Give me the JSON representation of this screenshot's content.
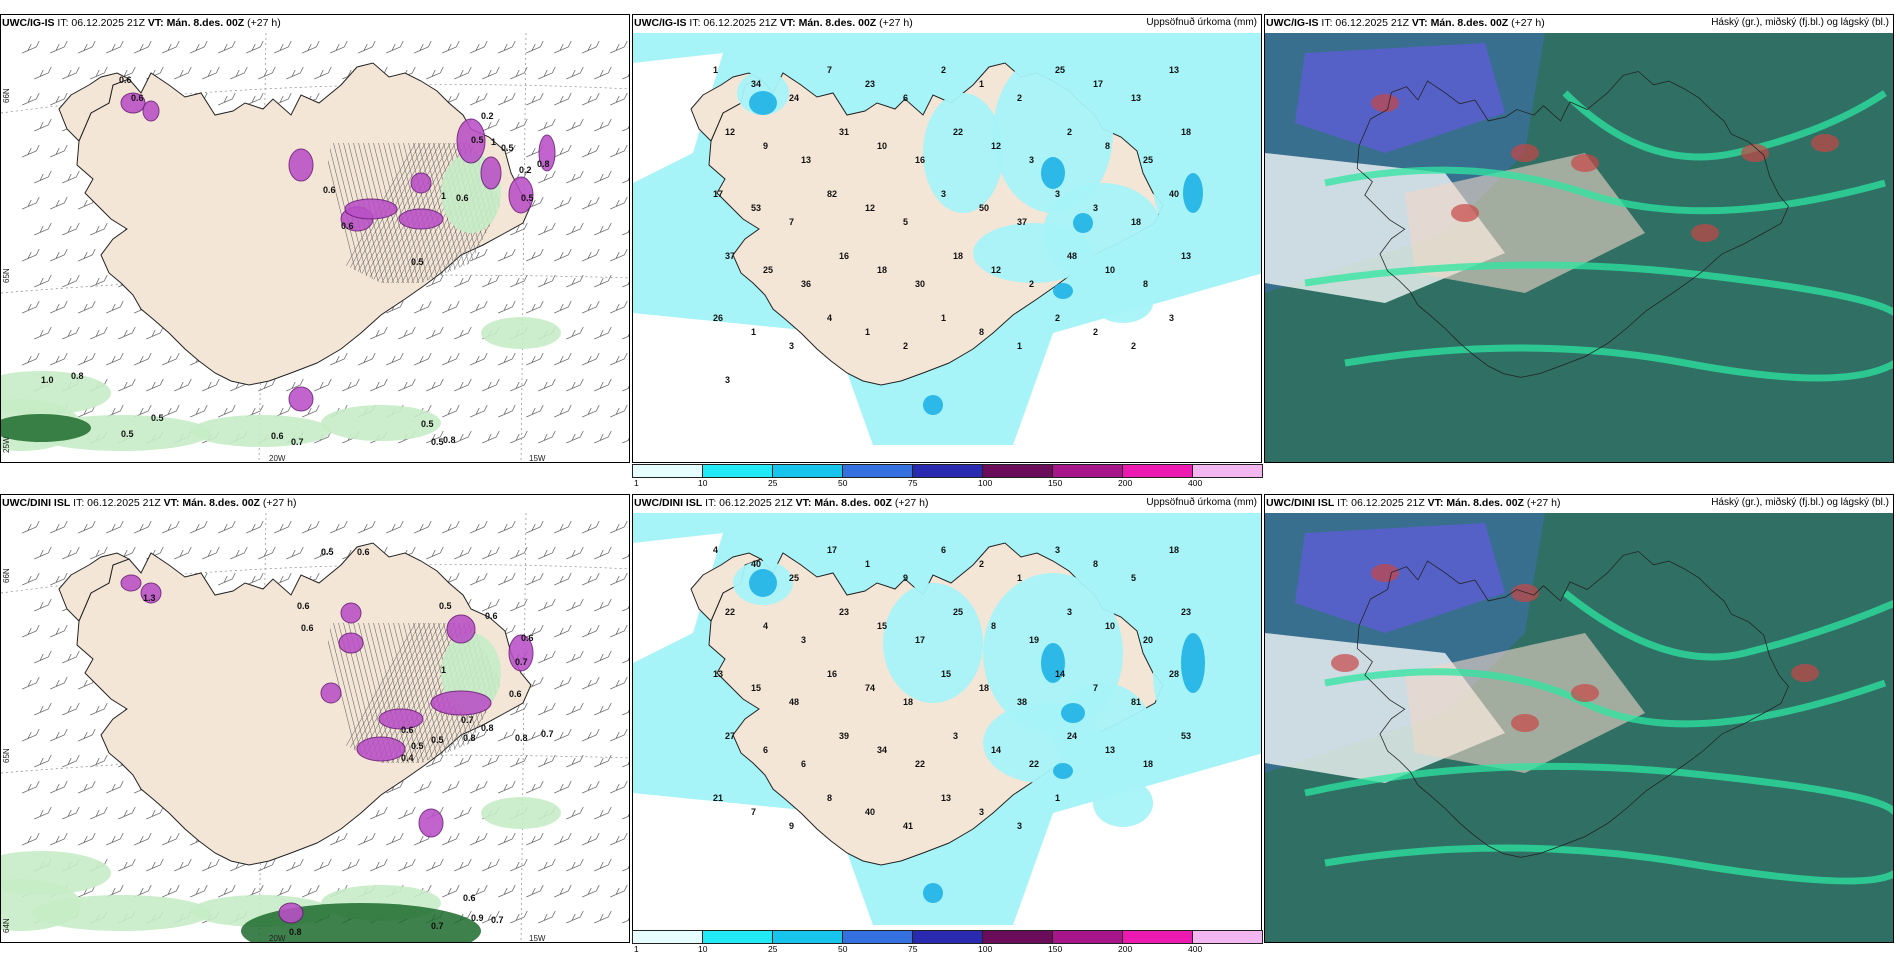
{
  "colors": {
    "land": "#f4e6d7",
    "sea": "#ffffff",
    "precip_light": "#a6f3f8",
    "precip_mid": "#54d9ee",
    "precip_strong": "#1fb3e6",
    "purple": "#b94fc7",
    "green_light": "#c7ecc7",
    "green_dark": "#1d6b2e",
    "cloud_teal": "#2f6f64",
    "cloud_bright": "#2ee6a0",
    "cloud_blue": "#5a5fd0"
  },
  "rows": [
    {
      "model_name": "UWC/IG-IS",
      "panels": [
        {
          "title_model": "UWC/IG-IS",
          "title_it": "IT: 06.12.2025 21Z",
          "title_vt": "VT: Mán. 8.des. 00Z",
          "title_lead": "(+27 h)",
          "right_title": ""
        },
        {
          "title_model": "UWC/IG-IS",
          "title_it": "IT: 06.12.2025 21Z",
          "title_vt": "VT: Mán. 8.des. 00Z",
          "title_lead": "(+27 h)",
          "right_title": "Uppsöfnuð úrkoma (mm)"
        },
        {
          "title_model": "UWC/IG-IS",
          "title_it": "IT: 06.12.2025 21Z",
          "title_vt": "VT: Mán. 8.des. 00Z",
          "title_lead": "(+27 h)",
          "right_title": "Háský (gr.), miðský (fj.bl.) og lágský (bl.)"
        }
      ],
      "precip_labels": [
        "1",
        "34",
        "24",
        "7",
        "23",
        "6",
        "2",
        "1",
        "2",
        "25",
        "17",
        "13",
        "13",
        "12",
        "9",
        "13",
        "31",
        "10",
        "16",
        "22",
        "12",
        "3",
        "2",
        "8",
        "25",
        "18",
        "17",
        "53",
        "7",
        "82",
        "12",
        "5",
        "3",
        "50",
        "37",
        "3",
        "3",
        "18",
        "40",
        "37",
        "25",
        "36",
        "16",
        "18",
        "30",
        "18",
        "12",
        "2",
        "48",
        "10",
        "8",
        "13",
        "26",
        "1",
        "3",
        "4",
        "1",
        "2",
        "1",
        "8",
        "1",
        "2",
        "2",
        "2",
        "3",
        "3"
      ],
      "lowcloud_labels": [
        "0.6",
        "0.6",
        "0.2",
        "1",
        "0.2",
        "0.6",
        "0.6",
        "0.6",
        "0.5",
        "1",
        "0.8",
        "1.0",
        "0.8",
        "0.5",
        "0.5",
        "0.6",
        "0.7",
        "0.5",
        "0.8",
        "0.5",
        "0.5",
        "0.5",
        "0.5"
      ]
    },
    {
      "model_name": "UWC/DINI ISL",
      "panels": [
        {
          "title_model": "UWC/DINI ISL",
          "title_it": "IT: 06.12.2025 21Z",
          "title_vt": "VT: Mán. 8.des. 00Z",
          "title_lead": "(+27 h)",
          "right_title": ""
        },
        {
          "title_model": "UWC/DINI ISL",
          "title_it": "IT: 06.12.2025 21Z",
          "title_vt": "VT: Mán. 8.des. 00Z",
          "title_lead": "(+27 h)",
          "right_title": "Uppsöfnuð úrkoma (mm)"
        },
        {
          "title_model": "UWC/DINI ISL",
          "title_it": "IT: 06.12.2025 21Z",
          "title_vt": "VT: Mán. 8.des. 00Z",
          "title_lead": "(+27 h)",
          "right_title": "Háský (gr.), miðský (fj.bl.) og lágský (bl.)"
        }
      ],
      "precip_labels": [
        "4",
        "40",
        "25",
        "17",
        "1",
        "9",
        "6",
        "2",
        "1",
        "3",
        "8",
        "5",
        "18",
        "22",
        "4",
        "3",
        "23",
        "15",
        "17",
        "25",
        "8",
        "19",
        "3",
        "10",
        "20",
        "23",
        "13",
        "15",
        "48",
        "16",
        "74",
        "18",
        "15",
        "18",
        "38",
        "14",
        "7",
        "81",
        "28",
        "27",
        "6",
        "6",
        "39",
        "34",
        "22",
        "3",
        "14",
        "22",
        "24",
        "13",
        "18",
        "53",
        "21",
        "7",
        "9",
        "8",
        "40",
        "41",
        "13",
        "3",
        "3",
        "1"
      ],
      "lowcloud_labels": [
        "0.5",
        "0.6",
        "0.6",
        "0.6",
        "1.3",
        "0.5",
        "0.6",
        "0.6",
        "0.7",
        "1",
        "0.6",
        "0.7",
        "0.6",
        "0.5",
        "0.4",
        "0.5",
        "0.8",
        "0.8",
        "0.8",
        "0.7",
        "0.7",
        "0.9",
        "0.7",
        "0.6",
        "0.8",
        "2.3"
      ]
    }
  ],
  "axes": {
    "lat_66": "66N",
    "lat_65": "65N",
    "lat_64": "64N",
    "lon_25": "25W",
    "lon_20": "20W",
    "lon_15": "15W"
  },
  "legend": {
    "ticks": [
      "1",
      "10",
      "25",
      "50",
      "75",
      "100",
      "150",
      "200",
      "400"
    ],
    "colors": [
      "#e6feff",
      "#21eaf6",
      "#16c4ec",
      "#3470e0",
      "#2a2ab0",
      "#6a0c5a",
      "#a6168a",
      "#ec1ab0",
      "#f3b6f0"
    ]
  }
}
